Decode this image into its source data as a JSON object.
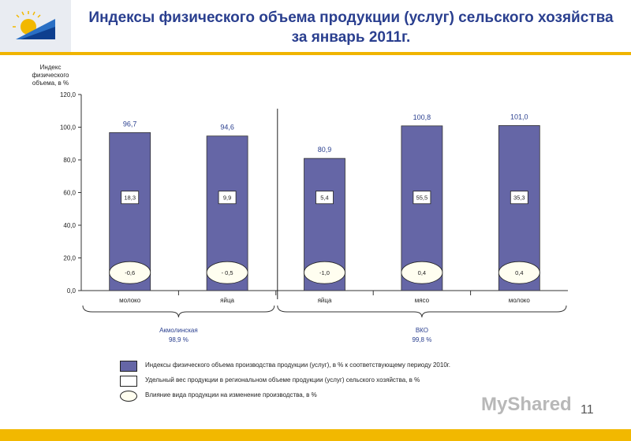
{
  "title": "Индексы физического объема продукции (услуг) сельского хозяйства за январь 2011г.",
  "page_number": "11",
  "watermark": "MyShared",
  "colors": {
    "bar": "#6566a6",
    "accent": "#f0b400",
    "title": "#2a3f8f"
  },
  "legend": [
    {
      "label": "Индексы физического объема производства продукции (услуг), в % к соответствующему периоду 2010г."
    },
    {
      "label": "Удельный вес продукции в региональном объеме продукции (услуг) сельского хозяйства, в %"
    },
    {
      "label": "Влияние вида продукции на изменение производства, в %"
    }
  ],
  "chart_data": {
    "type": "bar",
    "ylabel": [
      "Индекс",
      "физического",
      "объема, в %"
    ],
    "ylim": [
      0,
      120
    ],
    "yticks": [
      "0,0",
      "20,0",
      "40,0",
      "60,0",
      "80,0",
      "100,0",
      "120,0"
    ],
    "categories": [
      "молоко",
      "яйца",
      "яйца",
      "мясо",
      "молоко"
    ],
    "values": [
      96.7,
      94.6,
      80.9,
      100.8,
      101.0
    ],
    "value_labels": [
      "96,7",
      "94,6",
      "80,9",
      "100,8",
      "101,0"
    ],
    "share_labels": [
      "18,3",
      "9,9",
      "5,4",
      "55,5",
      "35,3"
    ],
    "influence_labels": [
      "-0,6",
      "- 0,5",
      "-1,0",
      "0,4",
      "0,4"
    ],
    "groups": [
      {
        "name": "Акмолинская",
        "total": "98,9 %",
        "members": [
          0,
          1
        ]
      },
      {
        "name": "ВКО",
        "total": "99,8 %",
        "members": [
          2,
          3,
          4
        ]
      }
    ],
    "grid": false
  }
}
